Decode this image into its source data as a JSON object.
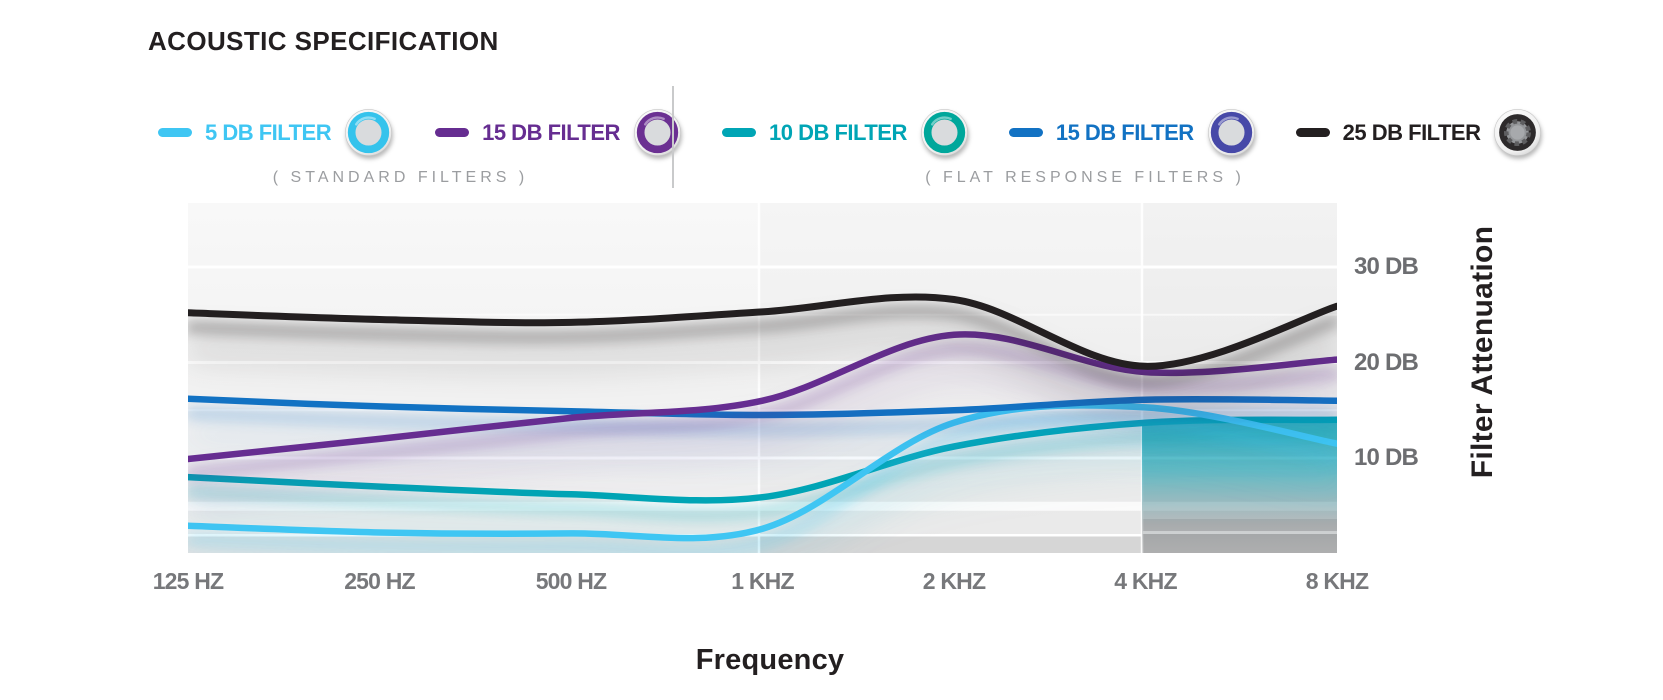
{
  "title": "ACOUSTIC SPECIFICATION",
  "legend": {
    "groups": [
      {
        "caption": "( STANDARD FILTERS )",
        "items": [
          {
            "label": "5 DB FILTER",
            "color": "#3fc6f3",
            "icon_ring": "#35c3ec",
            "icon": "earplug-filter"
          },
          {
            "label": "15 DB FILTER",
            "color": "#662d91",
            "icon_ring": "#6b3092",
            "icon": "earplug-filter"
          }
        ]
      },
      {
        "caption": "( FLAT RESPONSE FILTERS )",
        "items": [
          {
            "label": "10 DB FILTER",
            "color": "#00a5b5",
            "icon_ring": "#00a79b",
            "icon": "earplug-filter"
          },
          {
            "label": "15 DB FILTER",
            "color": "#1272c3",
            "icon_ring": "#4749a8",
            "icon": "earplug-filter"
          },
          {
            "label": "25 DB FILTER",
            "color": "#231f20",
            "icon_ring": "#2d2a2b",
            "icon": "earplug-filter-gear"
          }
        ]
      }
    ]
  },
  "chart_data": {
    "type": "line",
    "x_categories": [
      "125 HZ",
      "250 HZ",
      "500 HZ",
      "1 KHZ",
      "2 KHZ",
      "4 KHZ",
      "8 KHZ"
    ],
    "x_scale": "log-octave",
    "xlabel": "Frequency",
    "ylabel": "Filter Attenuation",
    "y_ticks": [
      "30 DB",
      "20 DB",
      "10 DB"
    ],
    "y_tick_values": [
      30,
      20,
      10
    ],
    "ylim": [
      0,
      36.5
    ],
    "grid": "white-lines-on-gray-bands",
    "legend_position": "top",
    "series": [
      {
        "name": "5 DB FILTER (STANDARD)",
        "color": "#3fc6f3",
        "values": [
          2.9,
          2.2,
          2.1,
          2.6,
          13.7,
          15.3,
          11.5
        ]
      },
      {
        "name": "10 DB FILTER (FLAT RESPONSE)",
        "color": "#00a5b5",
        "values": [
          8.0,
          7.0,
          6.2,
          5.9,
          11.2,
          13.7,
          14.0
        ]
      },
      {
        "name": "15 DB FILTER (FLAT RESPONSE)",
        "color": "#1272c3",
        "values": [
          16.2,
          15.4,
          14.9,
          14.5,
          15.0,
          16.1,
          16.0
        ]
      },
      {
        "name": "15 DB FILTER (STANDARD)",
        "color": "#662d91",
        "values": [
          9.9,
          12.0,
          14.2,
          16.0,
          22.9,
          19.0,
          20.3
        ]
      },
      {
        "name": "25 DB FILTER (FLAT RESPONSE)",
        "color": "#231f20",
        "values": [
          25.2,
          24.5,
          24.2,
          25.3,
          26.6,
          19.6,
          25.9
        ]
      }
    ]
  }
}
